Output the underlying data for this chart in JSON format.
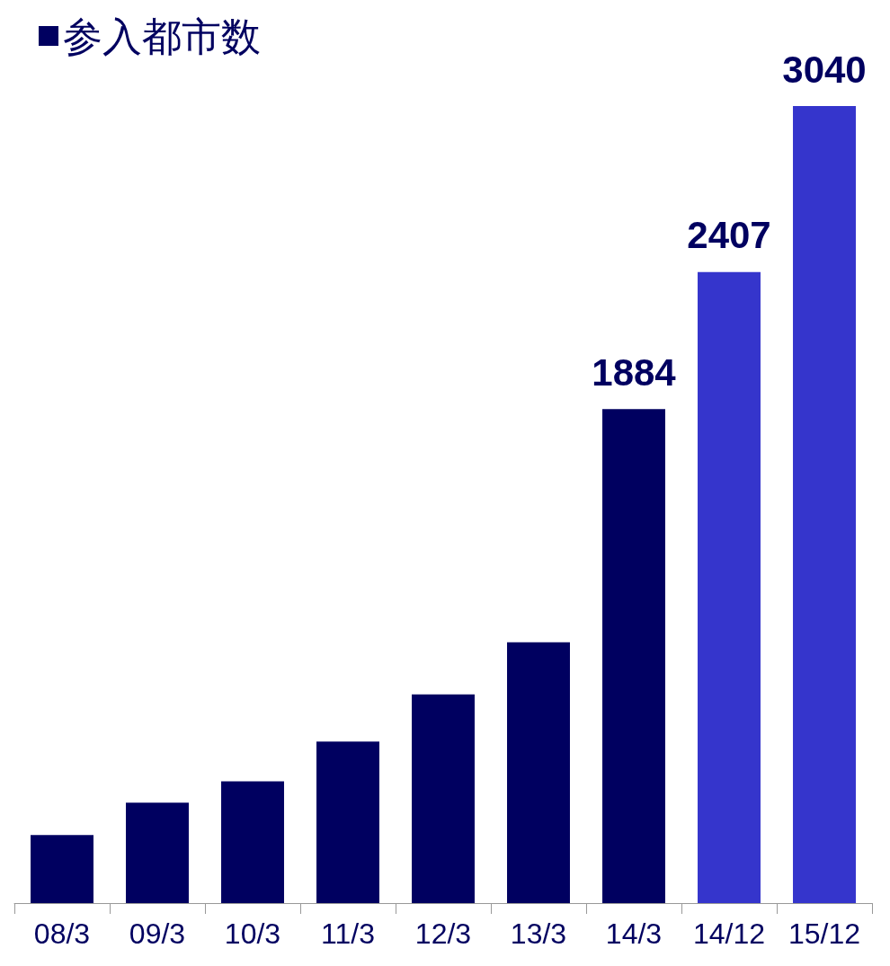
{
  "chart_data": {
    "type": "bar",
    "categories": [
      "08/3",
      "09/3",
      "10/3",
      "11/3",
      "12/3",
      "13/3",
      "14/3",
      "14/12",
      "15/12"
    ],
    "series": [
      {
        "name": "参入都市数",
        "color": "#000060",
        "colors": [
          "#000060",
          "#000060",
          "#000060",
          "#000060",
          "#000060",
          "#000060",
          "#000060",
          "#3535cc",
          "#3535cc"
        ],
        "values": [
          260,
          383,
          464,
          616,
          796,
          995,
          1884,
          2407,
          3040
        ],
        "value_labels": [
          null,
          null,
          null,
          null,
          null,
          null,
          "1884",
          "2407",
          "3040"
        ]
      }
    ],
    "legend": "top left"
  }
}
